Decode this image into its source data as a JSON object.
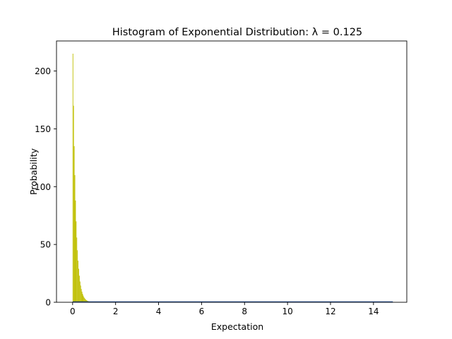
{
  "chart_data": {
    "type": "bar",
    "title": "Histogram of Exponential Distribution: λ = 0.125",
    "xlabel": "Expectation",
    "ylabel": "Probability",
    "xlim": [
      -0.75,
      15.55
    ],
    "ylim": [
      0,
      226
    ],
    "xticks": [
      0,
      2,
      4,
      6,
      8,
      10,
      12,
      14
    ],
    "yticks": [
      0,
      50,
      100,
      150,
      200
    ],
    "grid": false,
    "legend": "none",
    "bar_color": "#bfbf00",
    "line_color": "#1f4e9a",
    "bin_width": 0.03,
    "bin_start": 0,
    "bin_end": 14.9,
    "bars": [
      {
        "x": 0.0,
        "y": 215
      },
      {
        "x": 0.03,
        "y": 170
      },
      {
        "x": 0.06,
        "y": 135
      },
      {
        "x": 0.09,
        "y": 110
      },
      {
        "x": 0.12,
        "y": 88
      },
      {
        "x": 0.15,
        "y": 70
      },
      {
        "x": 0.18,
        "y": 56
      },
      {
        "x": 0.21,
        "y": 45
      },
      {
        "x": 0.24,
        "y": 36
      },
      {
        "x": 0.27,
        "y": 29
      },
      {
        "x": 0.3,
        "y": 23
      },
      {
        "x": 0.33,
        "y": 18
      },
      {
        "x": 0.36,
        "y": 14.5
      },
      {
        "x": 0.39,
        "y": 11.5
      },
      {
        "x": 0.42,
        "y": 9.2
      },
      {
        "x": 0.45,
        "y": 7.3
      },
      {
        "x": 0.48,
        "y": 5.8
      },
      {
        "x": 0.51,
        "y": 4.6
      },
      {
        "x": 0.54,
        "y": 3.7
      },
      {
        "x": 0.57,
        "y": 2.9
      },
      {
        "x": 0.6,
        "y": 2.3
      },
      {
        "x": 0.63,
        "y": 1.8
      },
      {
        "x": 0.66,
        "y": 1.45
      },
      {
        "x": 0.69,
        "y": 1.15
      },
      {
        "x": 0.72,
        "y": 0.9
      },
      {
        "x": 0.75,
        "y": 0.72
      },
      {
        "x": 0.78,
        "y": 0.57
      },
      {
        "x": 0.81,
        "y": 0.45
      },
      {
        "x": 0.84,
        "y": 0.36
      },
      {
        "x": 0.87,
        "y": 0.28
      },
      {
        "x": 0.9,
        "y": 0.22
      },
      {
        "x": 0.93,
        "y": 0.17
      },
      {
        "x": 0.96,
        "y": 0.13
      },
      {
        "x": 0.99,
        "y": 0.1
      }
    ]
  }
}
